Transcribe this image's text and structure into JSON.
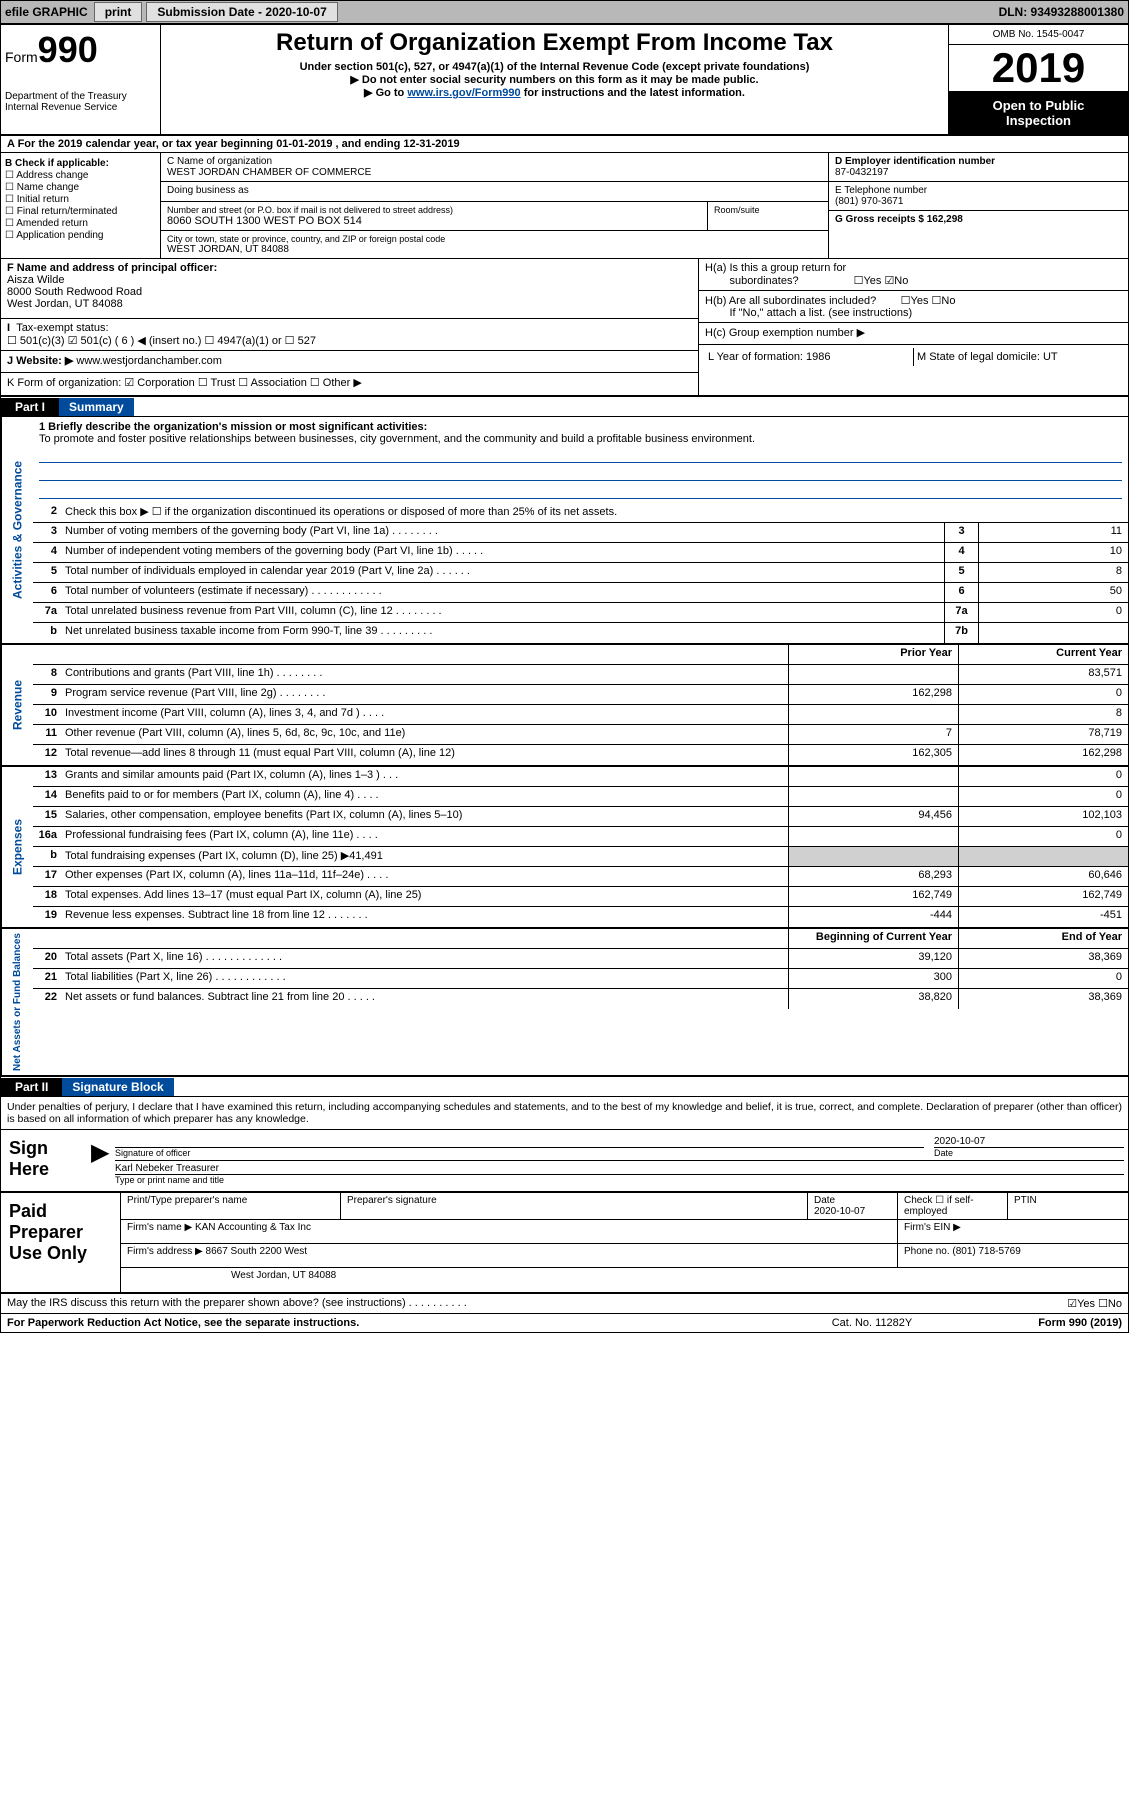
{
  "topbar": {
    "efile_label": "efile GRAPHIC",
    "print_btn": "print",
    "sub_date_label": "Submission Date",
    "sub_date_val": "2020-10-07",
    "dln_label": "DLN: 93493288001380"
  },
  "header": {
    "form_prefix": "Form",
    "form_num": "990",
    "dept": "Department of the Treasury",
    "irs": "Internal Revenue Service",
    "title": "Return of Organization Exempt From Income Tax",
    "sub1": "Under section 501(c), 527, or 4947(a)(1) of the Internal Revenue Code (except private foundations)",
    "sub2": "▶ Do not enter social security numbers on this form as it may be made public.",
    "sub3_pre": "▶ Go to ",
    "sub3_link": "www.irs.gov/Form990",
    "sub3_post": " for instructions and the latest information.",
    "omb": "OMB No. 1545-0047",
    "year": "2019",
    "inspect1": "Open to Public",
    "inspect2": "Inspection"
  },
  "row_a": "A For the 2019 calendar year, or tax year beginning 01-01-2019   , and ending 12-31-2019",
  "col_b": {
    "hdr": "B Check if applicable:",
    "o1": "☐ Address change",
    "o2": "☐ Name change",
    "o3": "☐ Initial return",
    "o4": "☐ Final return/terminated",
    "o5": "☐ Amended return",
    "o6": "☐ Application pending"
  },
  "col_c": {
    "name_lbl": "C Name of organization",
    "name_val": "WEST JORDAN CHAMBER OF COMMERCE",
    "dba_lbl": "Doing business as",
    "addr_lbl": "Number and street (or P.O. box if mail is not delivered to street address)",
    "addr_val": "8060 SOUTH 1300 WEST PO BOX 514",
    "room_lbl": "Room/suite",
    "city_lbl": "City or town, state or province, country, and ZIP or foreign postal code",
    "city_val": "WEST JORDAN, UT  84088"
  },
  "col_de": {
    "d_lbl": "D Employer identification number",
    "d_val": "87-0432197",
    "e_lbl": "E Telephone number",
    "e_val": "(801) 970-3671",
    "g_lbl": "G Gross receipts $ 162,298"
  },
  "sec_f": {
    "f_lbl": "F  Name and address of principal officer:",
    "f_name": "Aisza Wilde",
    "f_addr1": "8000 South Redwood Road",
    "f_addr2": "West Jordan, UT  84088",
    "tax_lbl": "Tax-exempt status:",
    "tax_opts": "☐ 501(c)(3)   ☑ 501(c) ( 6 ) ◀ (insert no.)   ☐ 4947(a)(1) or  ☐ 527",
    "j_lbl": "J   Website: ▶",
    "j_val": "www.westjordanchamber.com",
    "k_lbl": "K Form of organization:  ☑ Corporation  ☐ Trust  ☐ Association  ☐ Other ▶"
  },
  "sec_h": {
    "ha_lbl": "H(a)  Is this a group return for",
    "ha_sub": "subordinates?",
    "ha_val": "☐Yes ☑No",
    "hb_lbl": "H(b)  Are all subordinates included?",
    "hb_val": "☐Yes ☐No",
    "hb_note": "If \"No,\" attach a list. (see instructions)",
    "hc_lbl": "H(c)  Group exemption number ▶",
    "l_lbl": "L Year of formation: 1986",
    "m_lbl": "M State of legal domicile: UT"
  },
  "part1": {
    "tab": "Part I",
    "title": "Summary"
  },
  "vtabs": {
    "v1": "Activities & Governance",
    "v2": "Revenue",
    "v3": "Expenses",
    "v4": "Net Assets or Fund Balances"
  },
  "mission": {
    "q1": "1  Briefly describe the organization's mission or most significant activities:",
    "text": "To promote and foster positive relationships between businesses, city government, and the community and build a profitable business environment."
  },
  "lines_gov": [
    {
      "n": "2",
      "d": "Check this box ▶ ☐  if the organization discontinued its operations or disposed of more than 25% of its net assets.",
      "c": "",
      "v": ""
    },
    {
      "n": "3",
      "d": "Number of voting members of the governing body (Part VI, line 1a)   .    .    .    .    .    .    .    .",
      "c": "3",
      "v": "11"
    },
    {
      "n": "4",
      "d": "Number of independent voting members of the governing body (Part VI, line 1b)   .    .    .    .    .",
      "c": "4",
      "v": "10"
    },
    {
      "n": "5",
      "d": "Total number of individuals employed in calendar year 2019 (Part V, line 2a)   .    .    .    .    .    .",
      "c": "5",
      "v": "8"
    },
    {
      "n": "6",
      "d": "Total number of volunteers (estimate if necessary)    .    .    .    .    .    .    .    .    .    .    .    .",
      "c": "6",
      "v": "50"
    },
    {
      "n": "7a",
      "d": "Total unrelated business revenue from Part VIII, column (C), line 12    .    .    .    .    .    .    .    .",
      "c": "7a",
      "v": "0"
    },
    {
      "n": "b",
      "d": "Net unrelated business taxable income from Form 990-T, line 39    .    .    .    .    .    .    .    .    .",
      "c": "7b",
      "v": ""
    }
  ],
  "rev_hdr": {
    "py": "Prior Year",
    "cy": "Current Year"
  },
  "lines_rev": [
    {
      "n": "8",
      "d": "Contributions and grants (Part VIII, line 1h)    .    .    .    .    .    .    .    .",
      "py": "",
      "cy": "83,571"
    },
    {
      "n": "9",
      "d": "Program service revenue (Part VIII, line 2g)    .    .    .    .    .    .    .    .",
      "py": "162,298",
      "cy": "0"
    },
    {
      "n": "10",
      "d": "Investment income (Part VIII, column (A), lines 3, 4, and 7d )    .    .    .    .",
      "py": "",
      "cy": "8"
    },
    {
      "n": "11",
      "d": "Other revenue (Part VIII, column (A), lines 5, 6d, 8c, 9c, 10c, and 11e)",
      "py": "7",
      "cy": "78,719"
    },
    {
      "n": "12",
      "d": "Total revenue—add lines 8 through 11 (must equal Part VIII, column (A), line 12)",
      "py": "162,305",
      "cy": "162,298"
    }
  ],
  "lines_exp": [
    {
      "n": "13",
      "d": "Grants and similar amounts paid (Part IX, column (A), lines 1–3 )   .    .    .",
      "py": "",
      "cy": "0"
    },
    {
      "n": "14",
      "d": "Benefits paid to or for members (Part IX, column (A), line 4)    .    .    .    .",
      "py": "",
      "cy": "0"
    },
    {
      "n": "15",
      "d": "Salaries, other compensation, employee benefits (Part IX, column (A), lines 5–10)",
      "py": "94,456",
      "cy": "102,103"
    },
    {
      "n": "16a",
      "d": "Professional fundraising fees (Part IX, column (A), line 11e)    .    .    .    .",
      "py": "",
      "cy": "0"
    },
    {
      "n": "b",
      "d": "Total fundraising expenses (Part IX, column (D), line 25) ▶41,491",
      "py": "GREY",
      "cy": "GREY"
    },
    {
      "n": "17",
      "d": "Other expenses (Part IX, column (A), lines 11a–11d, 11f–24e)   .    .    .    .",
      "py": "68,293",
      "cy": "60,646"
    },
    {
      "n": "18",
      "d": "Total expenses. Add lines 13–17 (must equal Part IX, column (A), line 25)",
      "py": "162,749",
      "cy": "162,749"
    },
    {
      "n": "19",
      "d": "Revenue less expenses. Subtract line 18 from line 12  .    .    .    .    .    .    .",
      "py": "-444",
      "cy": "-451"
    }
  ],
  "net_hdr": {
    "py": "Beginning of Current Year",
    "cy": "End of Year"
  },
  "lines_net": [
    {
      "n": "20",
      "d": "Total assets (Part X, line 16)   .    .    .    .    .    .    .    .    .    .    .    .    .",
      "py": "39,120",
      "cy": "38,369"
    },
    {
      "n": "21",
      "d": "Total liabilities (Part X, line 26)    .    .    .    .    .    .    .    .    .    .    .    .",
      "py": "300",
      "cy": "0"
    },
    {
      "n": "22",
      "d": "Net assets or fund balances. Subtract line 21 from line 20   .    .    .    .    .",
      "py": "38,820",
      "cy": "38,369"
    }
  ],
  "part2": {
    "tab": "Part II",
    "title": "Signature Block"
  },
  "sig": {
    "decl": "Under penalties of perjury, I declare that I have examined this return, including accompanying schedules and statements, and to the best of my knowledge and belief, it is true, correct, and complete. Declaration of preparer (other than officer) is based on all information of which preparer has any knowledge.",
    "sign_here": "Sign Here",
    "sig_of_officer": "Signature of officer",
    "date_lbl": "Date",
    "date_val": "2020-10-07",
    "name_title": "Karl Nebeker  Treasurer",
    "type_lbl": "Type or print name and title"
  },
  "paid": {
    "label": "Paid Preparer Use Only",
    "r1c1": "Print/Type preparer's name",
    "r1c2": "Preparer's signature",
    "r1c3_lbl": "Date",
    "r1c3_val": "2020-10-07",
    "r1c4": "Check ☐ if self-employed",
    "r1c5": "PTIN",
    "r2c1_lbl": "Firm's name    ▶",
    "r2c1_val": "KAN Accounting & Tax Inc",
    "r2c2": "Firm's EIN ▶",
    "r3c1_lbl": "Firm's address ▶",
    "r3c1_val": "8667 South 2200 West",
    "r3c2": "Phone no. (801) 718-5769",
    "r4": "West Jordan, UT  84088"
  },
  "footer": {
    "discuss": "May the IRS discuss this return with the preparer shown above? (see instructions)    .    .    .    .    .    .    .    .    .    .",
    "discuss_val": "☑Yes  ☐No",
    "paperwork": "For Paperwork Reduction Act Notice, see the separate instructions.",
    "cat": "Cat. No. 11282Y",
    "formno": "Form 990 (2019)"
  }
}
